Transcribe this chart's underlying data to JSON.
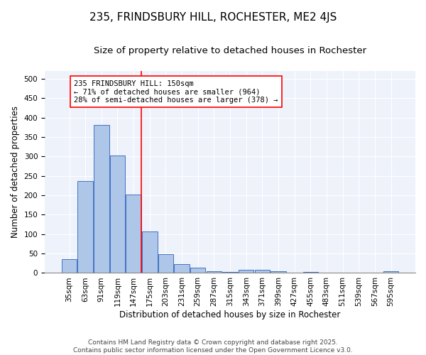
{
  "title": "235, FRINDSBURY HILL, ROCHESTER, ME2 4JS",
  "subtitle": "Size of property relative to detached houses in Rochester",
  "xlabel": "Distribution of detached houses by size in Rochester",
  "ylabel": "Number of detached properties",
  "footer_line1": "Contains HM Land Registry data © Crown copyright and database right 2025.",
  "footer_line2": "Contains public sector information licensed under the Open Government Licence v3.0.",
  "annotation_line1": "235 FRINDSBURY HILL: 150sqm",
  "annotation_line2": "← 71% of detached houses are smaller (964)",
  "annotation_line3": "28% of semi-detached houses are larger (378) →",
  "bar_labels": [
    "35sqm",
    "63sqm",
    "91sqm",
    "119sqm",
    "147sqm",
    "175sqm",
    "203sqm",
    "231sqm",
    "259sqm",
    "287sqm",
    "315sqm",
    "343sqm",
    "371sqm",
    "399sqm",
    "427sqm",
    "455sqm",
    "483sqm",
    "511sqm",
    "539sqm",
    "567sqm",
    "595sqm"
  ],
  "bar_values": [
    35,
    236,
    381,
    303,
    202,
    106,
    48,
    22,
    13,
    5,
    2,
    9,
    9,
    5,
    1,
    3,
    1,
    1,
    1,
    1,
    4
  ],
  "bar_color": "#aec6e8",
  "bar_edge_color": "#4472c4",
  "background_color": "#eef2fb",
  "ylim": [
    0,
    520
  ],
  "yticks": [
    0,
    50,
    100,
    150,
    200,
    250,
    300,
    350,
    400,
    450,
    500
  ],
  "title_fontsize": 11,
  "subtitle_fontsize": 9.5,
  "axis_label_fontsize": 8.5,
  "tick_fontsize": 7.5,
  "footer_fontsize": 6.5,
  "annotation_fontsize": 7.5
}
